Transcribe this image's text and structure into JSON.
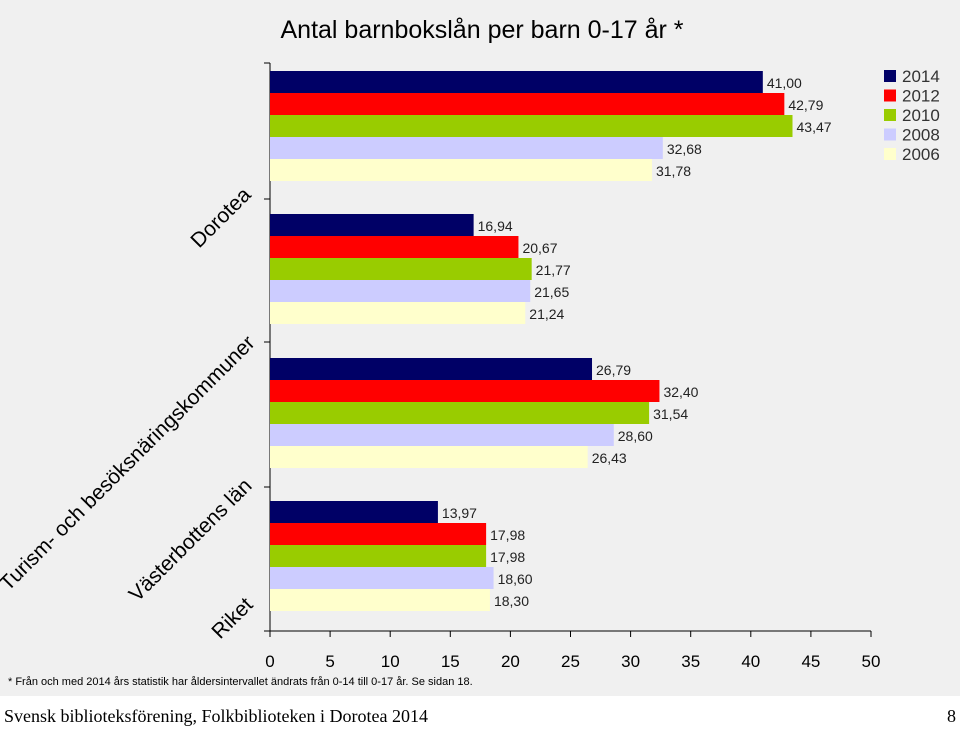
{
  "chart_data": {
    "type": "bar",
    "orientation": "horizontal",
    "title": "Antal barnbokslån per barn 0-17 år *",
    "categories": [
      "Dorotea",
      "Turism- och besöksnäringskommuner",
      "Västerbottens län",
      "Riket"
    ],
    "series": [
      {
        "name": "2014",
        "color": "#000066",
        "values": [
          41.0,
          16.94,
          26.79,
          13.97
        ],
        "labels": [
          "41,00",
          "16,94",
          "26,79",
          "13,97"
        ]
      },
      {
        "name": "2012",
        "color": "#ff0000",
        "values": [
          42.79,
          20.67,
          32.4,
          17.98
        ],
        "labels": [
          "42,79",
          "20,67",
          "32,40",
          "17,98"
        ]
      },
      {
        "name": "2010",
        "color": "#99cc00",
        "values": [
          43.47,
          21.77,
          31.54,
          17.98
        ],
        "labels": [
          "43,47",
          "21,77",
          "31,54",
          "17,98"
        ]
      },
      {
        "name": "2008",
        "color": "#ccccff",
        "values": [
          32.68,
          21.65,
          28.6,
          18.6
        ],
        "labels": [
          "32,68",
          "21,65",
          "28,60",
          "18,60"
        ]
      },
      {
        "name": "2006",
        "color": "#ffffcc",
        "values": [
          31.78,
          21.24,
          26.43,
          18.3
        ],
        "labels": [
          "31,78",
          "21,24",
          "26,43",
          "18,30"
        ]
      }
    ],
    "xlim": [
      0,
      50
    ],
    "xticks": [
      "0",
      "5",
      "10",
      "15",
      "20",
      "25",
      "30",
      "35",
      "40",
      "45",
      "50"
    ],
    "legend": "top-right",
    "grid": false
  },
  "footnote": "* Från och med 2014 års statistik har åldersintervallet ändrats från 0-14 till 0-17 år. Se sidan 18.",
  "footer": {
    "left": "Svensk biblioteksförening, Folkbiblioteken i Dorotea 2014",
    "page": "8"
  }
}
